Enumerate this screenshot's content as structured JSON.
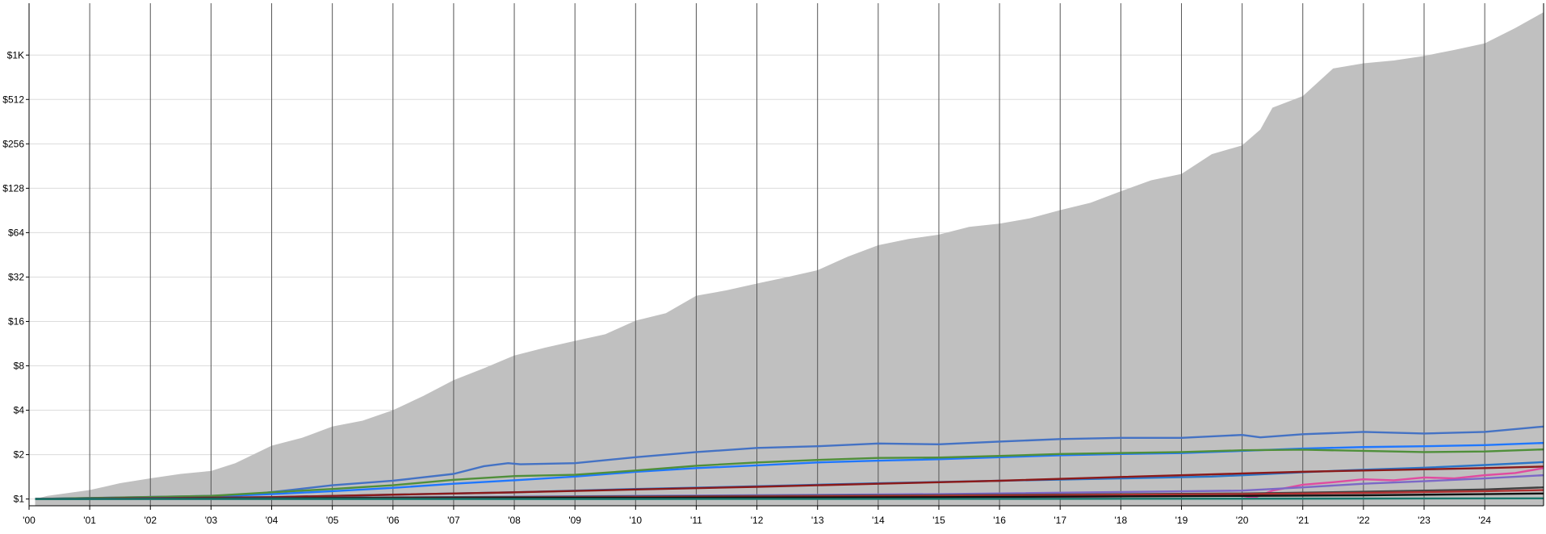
{
  "chart_data": {
    "type": "line",
    "y_scale": "log2",
    "y_ticks": [
      {
        "value": 1,
        "label": "$1"
      },
      {
        "value": 2,
        "label": "$2"
      },
      {
        "value": 4,
        "label": "$4"
      },
      {
        "value": 8,
        "label": "$8"
      },
      {
        "value": 16,
        "label": "$16"
      },
      {
        "value": 32,
        "label": "$32"
      },
      {
        "value": 64,
        "label": "$64"
      },
      {
        "value": 128,
        "label": "$128"
      },
      {
        "value": 256,
        "label": "$256"
      },
      {
        "value": 512,
        "label": "$512"
      },
      {
        "value": 1024,
        "label": "$1K"
      }
    ],
    "x_ticks": [
      {
        "value": 2000,
        "label": "'00"
      },
      {
        "value": 2001,
        "label": "'01"
      },
      {
        "value": 2002,
        "label": "'02"
      },
      {
        "value": 2003,
        "label": "'03"
      },
      {
        "value": 2004,
        "label": "'04"
      },
      {
        "value": 2005,
        "label": "'05"
      },
      {
        "value": 2006,
        "label": "'06"
      },
      {
        "value": 2007,
        "label": "'07"
      },
      {
        "value": 2008,
        "label": "'08"
      },
      {
        "value": 2009,
        "label": "'09"
      },
      {
        "value": 2010,
        "label": "'10"
      },
      {
        "value": 2011,
        "label": "'11"
      },
      {
        "value": 2012,
        "label": "'12"
      },
      {
        "value": 2013,
        "label": "'13"
      },
      {
        "value": 2014,
        "label": "'14"
      },
      {
        "value": 2015,
        "label": "'15"
      },
      {
        "value": 2016,
        "label": "'16"
      },
      {
        "value": 2017,
        "label": "'17"
      },
      {
        "value": 2018,
        "label": "'18"
      },
      {
        "value": 2019,
        "label": "'19"
      },
      {
        "value": 2020,
        "label": "'20"
      },
      {
        "value": 2021,
        "label": "'21"
      },
      {
        "value": 2022,
        "label": "'22"
      },
      {
        "value": 2023,
        "label": "'23"
      },
      {
        "value": 2024,
        "label": "'24"
      }
    ],
    "xlim": [
      2000.0,
      2024.97
    ],
    "ylim": [
      0.9,
      2300
    ],
    "grid": true,
    "area": {
      "color": "#c0c0c0",
      "x": [
        2000.1,
        2000.3,
        2001.0,
        2001.5,
        2002.0,
        2002.5,
        2003.0,
        2003.4,
        2004.0,
        2004.5,
        2005.0,
        2005.5,
        2006.0,
        2006.5,
        2007.0,
        2007.5,
        2008.0,
        2008.5,
        2009.0,
        2009.5,
        2010.0,
        2010.5,
        2011.0,
        2011.5,
        2012.0,
        2012.5,
        2013.0,
        2013.5,
        2014.0,
        2014.5,
        2015.0,
        2015.5,
        2016.0,
        2016.5,
        2017.0,
        2017.5,
        2018.0,
        2018.5,
        2019.0,
        2019.5,
        2020.0,
        2020.3,
        2020.5,
        2021.0,
        2021.5,
        2022.0,
        2022.5,
        2023.0,
        2023.5,
        2024.0,
        2024.5,
        2024.97
      ],
      "y": [
        1.0,
        1.05,
        1.15,
        1.28,
        1.38,
        1.48,
        1.55,
        1.75,
        2.3,
        2.6,
        3.1,
        3.4,
        4.0,
        5.0,
        6.4,
        7.7,
        9.4,
        10.6,
        11.8,
        13.1,
        16.2,
        18.2,
        23.9,
        26.0,
        28.9,
        32.0,
        35.6,
        44.0,
        52.6,
        58.0,
        62.0,
        70.0,
        73.6,
        80.0,
        91.0,
        102.0,
        122.0,
        145.0,
        160.0,
        218.0,
        250.0,
        320.0,
        450.0,
        540.0,
        830.0,
        900.0,
        940.0,
        1010.0,
        1110.0,
        1230.0,
        1560.0,
        2000.0
      ]
    },
    "series": [
      {
        "color": "#4472c4",
        "x": [
          2000.1,
          2003.5,
          2004.3,
          2005.0,
          2006.0,
          2007.0,
          2007.5,
          2007.9,
          2008.1,
          2009.0,
          2010.0,
          2011.0,
          2012.0,
          2013.0,
          2014.0,
          2015.0,
          2016.0,
          2017.0,
          2018.0,
          2019.0,
          2020.0,
          2020.3,
          2021.0,
          2022.0,
          2023.0,
          2024.0,
          2024.97
        ],
        "y": [
          1.0,
          1.06,
          1.15,
          1.24,
          1.33,
          1.48,
          1.67,
          1.75,
          1.72,
          1.75,
          1.92,
          2.08,
          2.22,
          2.28,
          2.38,
          2.35,
          2.45,
          2.55,
          2.6,
          2.6,
          2.72,
          2.62,
          2.75,
          2.85,
          2.78,
          2.85,
          3.1
        ]
      },
      {
        "color": "#1f77ff",
        "x": [
          2000.1,
          2003.0,
          2004.0,
          2005.0,
          2006.0,
          2007.0,
          2008.0,
          2009.0,
          2010.0,
          2011.0,
          2012.0,
          2013.0,
          2014.0,
          2015.0,
          2016.0,
          2017.0,
          2018.0,
          2019.0,
          2020.0,
          2021.0,
          2022.0,
          2023.0,
          2024.0,
          2024.97
        ],
        "y": [
          1.0,
          1.04,
          1.08,
          1.13,
          1.19,
          1.27,
          1.34,
          1.42,
          1.53,
          1.62,
          1.69,
          1.77,
          1.82,
          1.86,
          1.92,
          1.98,
          2.02,
          2.05,
          2.12,
          2.2,
          2.25,
          2.28,
          2.32,
          2.4
        ]
      },
      {
        "color": "#4f8f3a",
        "x": [
          2000.1,
          2003.0,
          2004.0,
          2005.0,
          2006.0,
          2007.0,
          2008.0,
          2009.0,
          2010.0,
          2011.0,
          2012.0,
          2013.0,
          2014.0,
          2015.0,
          2016.0,
          2017.0,
          2018.0,
          2019.0,
          2020.0,
          2021.0,
          2022.0,
          2023.0,
          2024.0,
          2024.97
        ],
        "y": [
          1.0,
          1.05,
          1.11,
          1.17,
          1.24,
          1.35,
          1.43,
          1.46,
          1.56,
          1.68,
          1.77,
          1.84,
          1.9,
          1.91,
          1.96,
          2.02,
          2.05,
          2.08,
          2.14,
          2.16,
          2.12,
          2.08,
          2.1,
          2.17
        ]
      },
      {
        "color": "#2a75c8",
        "x": [
          2000.1,
          2004.0,
          2006.0,
          2008.0,
          2010.0,
          2012.0,
          2014.0,
          2016.0,
          2018.0,
          2019.5,
          2020.0,
          2021.0,
          2022.0,
          2023.0,
          2024.0,
          2024.97
        ],
        "y": [
          1.0,
          1.03,
          1.07,
          1.11,
          1.17,
          1.22,
          1.28,
          1.33,
          1.38,
          1.42,
          1.45,
          1.52,
          1.58,
          1.63,
          1.7,
          1.78
        ]
      },
      {
        "color": "#8b1a1a",
        "x": [
          2000.1,
          2004.0,
          2006.0,
          2008.0,
          2010.0,
          2012.0,
          2014.0,
          2016.0,
          2018.0,
          2020.0,
          2021.0,
          2022.0,
          2023.0,
          2024.0,
          2024.97
        ],
        "y": [
          1.0,
          1.03,
          1.07,
          1.11,
          1.16,
          1.21,
          1.27,
          1.33,
          1.41,
          1.49,
          1.53,
          1.56,
          1.59,
          1.62,
          1.66
        ]
      },
      {
        "color": "#e04ba0",
        "x": [
          2000.1,
          2005.0,
          2010.0,
          2015.0,
          2019.0,
          2019.8,
          2020.2,
          2020.5,
          2021.0,
          2021.5,
          2022.0,
          2022.5,
          2023.0,
          2023.5,
          2024.0,
          2024.5,
          2024.97
        ],
        "y": [
          1.0,
          1.0,
          1.01,
          1.02,
          1.05,
          1.08,
          1.02,
          1.14,
          1.25,
          1.3,
          1.36,
          1.34,
          1.4,
          1.38,
          1.45,
          1.5,
          1.62
        ]
      },
      {
        "color": "#7b68c6",
        "x": [
          2000.1,
          2005.0,
          2010.0,
          2015.0,
          2020.0,
          2021.0,
          2022.0,
          2023.0,
          2024.0,
          2024.97
        ],
        "y": [
          1.0,
          1.02,
          1.05,
          1.08,
          1.14,
          1.2,
          1.27,
          1.32,
          1.38,
          1.45
        ]
      },
      {
        "color": "#404040",
        "x": [
          2000.1,
          2005.0,
          2010.0,
          2015.0,
          2020.0,
          2022.0,
          2024.0,
          2024.97
        ],
        "y": [
          1.0,
          1.02,
          1.04,
          1.06,
          1.09,
          1.12,
          1.16,
          1.2
        ]
      },
      {
        "color": "#b03030",
        "x": [
          2000.1,
          2005.0,
          2010.0,
          2015.0,
          2020.0,
          2022.0,
          2024.0,
          2024.97
        ],
        "y": [
          1.0,
          1.01,
          1.03,
          1.05,
          1.08,
          1.1,
          1.13,
          1.15
        ]
      },
      {
        "color": "#111111",
        "x": [
          2000.1,
          2005.0,
          2010.0,
          2015.0,
          2020.0,
          2022.0,
          2024.0,
          2024.97
        ],
        "y": [
          1.0,
          1.01,
          1.02,
          1.03,
          1.05,
          1.06,
          1.08,
          1.09
        ]
      },
      {
        "color": "#1a7a6e",
        "x": [
          2000.1,
          2010.0,
          2020.0,
          2024.97
        ],
        "y": [
          1.0,
          1.0,
          1.005,
          1.01
        ]
      }
    ]
  }
}
